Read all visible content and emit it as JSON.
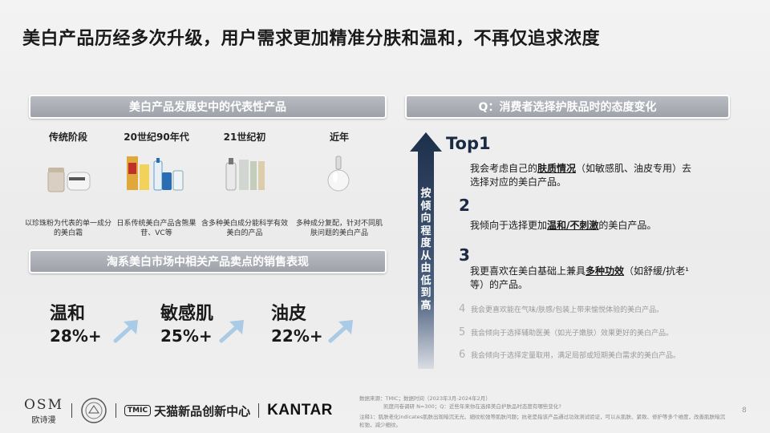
{
  "title": "美白产品历经多次升级，用户需求更加精准分肤和温和，不再仅追求浓度",
  "left": {
    "banner_top": "美白产品发展史中的代表性产品",
    "stages": [
      {
        "label": "传统阶段",
        "desc": "以珍珠粉为代表的单一成分的美白霜"
      },
      {
        "label": "20世纪90年代",
        "desc": "日系传统美白产品含熊果苷、VC等"
      },
      {
        "label": "21世纪初",
        "desc": "含多种美白成分能科学有效美白的产品"
      },
      {
        "label": "近年",
        "desc": "多种成分复配，针对不同肌肤问题的美白产品"
      }
    ],
    "banner_bottom": "淘系美白市场中相关产品卖点的销售表现",
    "features": [
      {
        "name": "温和",
        "value": "28%+"
      },
      {
        "name": "敏感肌",
        "value": "25%+"
      },
      {
        "name": "油皮",
        "value": "22%+"
      }
    ]
  },
  "right": {
    "banner": "Q：消费者选择护肤品时的态度变化",
    "axis_text": "按倾向程度从由低到高",
    "top_items": [
      {
        "rank": "Top1",
        "pre": "我会考虑自己的",
        "key": "肤质情况",
        "post": "（如敏感肌、油皮专用）去选择对应的美白产品。"
      },
      {
        "rank": "2",
        "pre": "我倾向于选择更加",
        "key": "温和/不刺激",
        "post": "的美白产品。"
      },
      {
        "rank": "3",
        "pre": "我更喜欢在美白基础上兼具",
        "key": "多种功效",
        "post": "（如舒缓/抗老¹等）的产品。"
      }
    ],
    "minor_items": [
      {
        "rank": "4",
        "text": "我会更喜欢能在气味/肤感/包装上带来愉悦体验的美白产品。"
      },
      {
        "rank": "5",
        "text": "我会倾向于选择辅助医美（如光子嫩肤）效果更好的美白产品。"
      },
      {
        "rank": "6",
        "text": "我会倾向于选择定量取用，满足局部或短期美白需求的美白产品。"
      }
    ]
  },
  "footer": {
    "osm_big": "OSM",
    "osm_small": "欧诗漫",
    "tmic_badge": "TMIC",
    "tmall_center": "天猫新品创新中心",
    "kantar": "KANTAR",
    "source": "数据来源：TMIC；数据时间（2023年3月-2024年2月）",
    "survey": "凯度问卷调研 N=300；Q：近些年来你在选择美白护肤品时态度有哪些变化?",
    "note": "注释1：肌肤老化indicates肌肤出现暗沉无光、細纹松弛等肌肤问题；抗老是指该产品通过功效测试验证，可以从肌肤、紧致、修护等多个维度，改善肌肤暗沉松弛，减少细纹。",
    "page": "8"
  },
  "colors": {
    "banner": "#a7abb2",
    "arrow_dark": "#1f3350",
    "feature_arrow": "#a9cbe6"
  },
  "icons": [
    "product-image",
    "seal-logo",
    "trend-arrow-icon",
    "up-arrow-icon"
  ]
}
